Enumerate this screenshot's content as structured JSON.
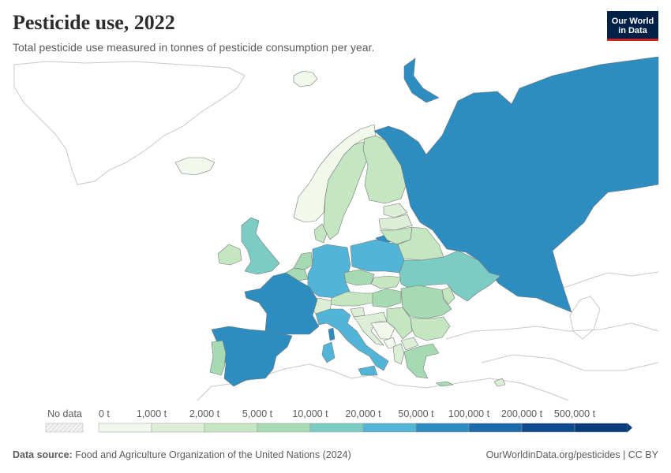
{
  "header": {
    "title": "Pesticide use, 2022",
    "subtitle": "Total pesticide use measured in tonnes of pesticide consumption per year.",
    "logo_line1": "Our World",
    "logo_line2": "in Data"
  },
  "legend": {
    "no_data_label": "No data",
    "bins": [
      {
        "label": "0 t",
        "color": "#f2f9ec"
      },
      {
        "label": "1,000 t",
        "color": "#dcefd6"
      },
      {
        "label": "2,000 t",
        "color": "#c4e6c0"
      },
      {
        "label": "5,000 t",
        "color": "#a5dab2"
      },
      {
        "label": "10,000 t",
        "color": "#7bccc4"
      },
      {
        "label": "20,000 t",
        "color": "#52b4d6"
      },
      {
        "label": "50,000 t",
        "color": "#2d8dc1"
      },
      {
        "label": "100,000 t",
        "color": "#1c6aab"
      },
      {
        "label": "200,000 t",
        "color": "#0e4b8e"
      },
      {
        "label": "500,000 t",
        "color": "#083d7a"
      }
    ],
    "no_data_color": "#eeeeee"
  },
  "regions": [
    {
      "name": "Russia",
      "bin": 6
    },
    {
      "name": "France",
      "bin": 6
    },
    {
      "name": "Spain",
      "bin": 6
    },
    {
      "name": "Italy",
      "bin": 5
    },
    {
      "name": "Germany",
      "bin": 5
    },
    {
      "name": "Poland",
      "bin": 5
    },
    {
      "name": "Ukraine",
      "bin": 4
    },
    {
      "name": "United Kingdom",
      "bin": 4
    },
    {
      "name": "Romania",
      "bin": 3
    },
    {
      "name": "Hungary",
      "bin": 3
    },
    {
      "name": "Czechia",
      "bin": 3
    },
    {
      "name": "Netherlands",
      "bin": 3
    },
    {
      "name": "Portugal",
      "bin": 3
    },
    {
      "name": "Belgium",
      "bin": 3
    },
    {
      "name": "Greece",
      "bin": 3
    },
    {
      "name": "Austria",
      "bin": 2
    },
    {
      "name": "Serbia",
      "bin": 2
    },
    {
      "name": "Bulgaria",
      "bin": 2
    },
    {
      "name": "Belarus",
      "bin": 2
    },
    {
      "name": "Denmark",
      "bin": 2
    },
    {
      "name": "Sweden",
      "bin": 2
    },
    {
      "name": "Finland",
      "bin": 2
    },
    {
      "name": "Ireland",
      "bin": 2
    },
    {
      "name": "Lithuania",
      "bin": 2
    },
    {
      "name": "Slovakia",
      "bin": 2
    },
    {
      "name": "Croatia",
      "bin": 1
    },
    {
      "name": "Switzerland",
      "bin": 1
    },
    {
      "name": "Latvia",
      "bin": 1
    },
    {
      "name": "Estonia",
      "bin": 1
    },
    {
      "name": "Norway",
      "bin": 0
    },
    {
      "name": "Iceland",
      "bin": 0
    },
    {
      "name": "Slovenia",
      "bin": 1
    },
    {
      "name": "Bosnia and Herzegovina",
      "bin": 0
    },
    {
      "name": "Albania",
      "bin": 1
    },
    {
      "name": "North Macedonia",
      "bin": 1
    },
    {
      "name": "Montenegro",
      "bin": 0
    },
    {
      "name": "Moldova",
      "bin": 2
    },
    {
      "name": "Cyprus",
      "bin": 1
    },
    {
      "name": "Svalbard",
      "bin": 0
    }
  ],
  "footer": {
    "source_label": "Data source:",
    "source_text": "Food and Agriculture Organization of the United Nations (2024)",
    "right_text": "OurWorldinData.org/pesticides | CC BY"
  }
}
